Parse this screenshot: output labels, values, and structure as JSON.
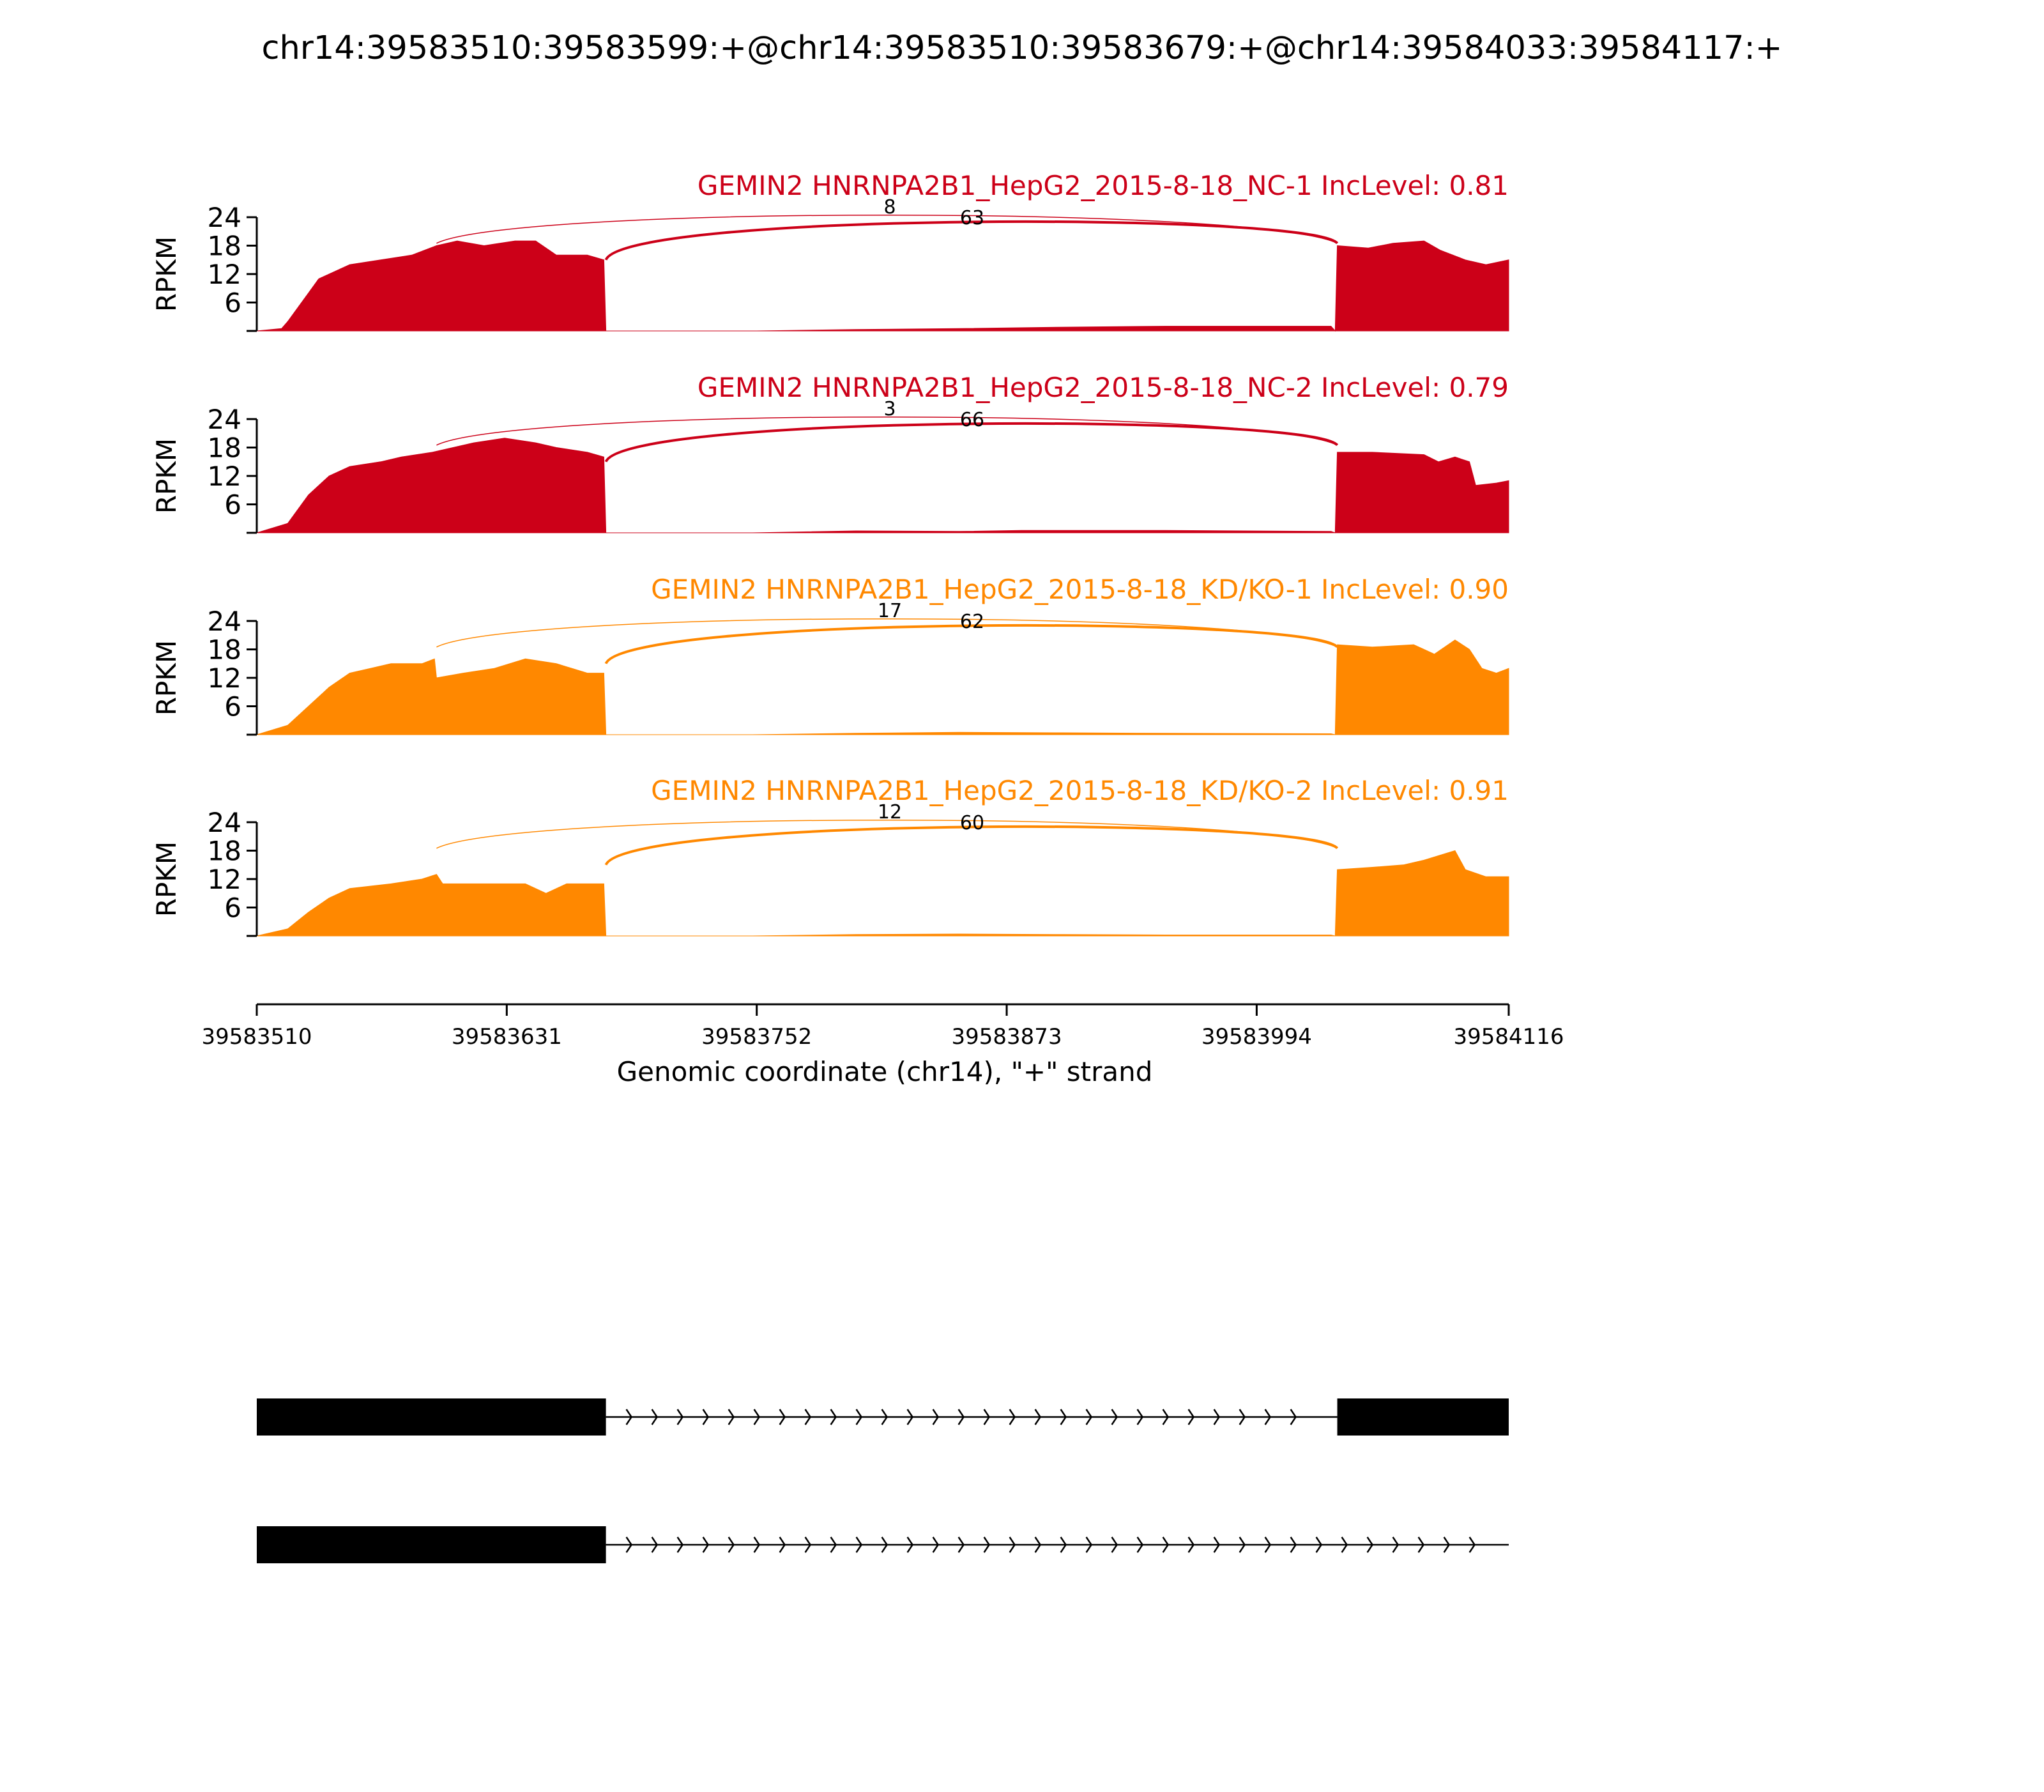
{
  "title": "chr14:39583510:39583599:+@chr14:39583510:39583679:+@chr14:39584033:39584117:+",
  "x_axis": {
    "label": "Genomic coordinate (chr14), \"+\" strand",
    "ticks": [
      "39583510",
      "39583631",
      "39583752",
      "39583873",
      "39583994",
      "39584116"
    ]
  },
  "y_axis": {
    "label": "RPKM",
    "ticks": [
      "24",
      "18",
      "12",
      "6"
    ]
  },
  "colors": {
    "nc": "#cc0018",
    "kd": "#ff8800",
    "structure": "#000000"
  },
  "chart_data": {
    "type": "area",
    "x_range": [
      39583510,
      39584116
    ],
    "y_range": [
      0,
      24
    ],
    "exons": {
      "upstream": [
        39583510,
        39583679
      ],
      "downstream": [
        39584033,
        39584116
      ]
    },
    "tracks": [
      {
        "name": "GEMIN2 HNRNPA2B1_HepG2_2015-8-18_NC-1 IncLevel: 0.81",
        "color_key": "nc",
        "coverage": [
          [
            39583510,
            0
          ],
          [
            39583522,
            0.5
          ],
          [
            39583525,
            2
          ],
          [
            39583535,
            8
          ],
          [
            39583540,
            11
          ],
          [
            39583550,
            13
          ],
          [
            39583555,
            14
          ],
          [
            39583570,
            15
          ],
          [
            39583585,
            16
          ],
          [
            39583597,
            18
          ],
          [
            39583607,
            19
          ],
          [
            39583620,
            18
          ],
          [
            39583635,
            19
          ],
          [
            39583645,
            19
          ],
          [
            39583655,
            16
          ],
          [
            39583670,
            16
          ],
          [
            39583678,
            15
          ],
          [
            39583679,
            0
          ],
          [
            39583752,
            0
          ],
          [
            39583800,
            0.3
          ],
          [
            39583850,
            0.5
          ],
          [
            39583900,
            0.8
          ],
          [
            39583950,
            1
          ],
          [
            39584030,
            1
          ],
          [
            39584032,
            0
          ],
          [
            39584033,
            18
          ],
          [
            39584048,
            17.5
          ],
          [
            39584060,
            18.5
          ],
          [
            39584075,
            19
          ],
          [
            39584083,
            17
          ],
          [
            39584095,
            15
          ],
          [
            39584105,
            14
          ],
          [
            39584116,
            15
          ]
        ],
        "junctions": [
          {
            "label": "8",
            "from": 39583597,
            "to": 39584033
          },
          {
            "label": "63",
            "from": 39583679,
            "to": 39584033
          }
        ]
      },
      {
        "name": "GEMIN2 HNRNPA2B1_HepG2_2015-8-18_NC-2 IncLevel: 0.79",
        "color_key": "nc",
        "coverage": [
          [
            39583510,
            0
          ],
          [
            39583525,
            2
          ],
          [
            39583535,
            8
          ],
          [
            39583545,
            12
          ],
          [
            39583555,
            14
          ],
          [
            39583570,
            15
          ],
          [
            39583580,
            16
          ],
          [
            39583595,
            17
          ],
          [
            39583605,
            18
          ],
          [
            39583615,
            19
          ],
          [
            39583630,
            20
          ],
          [
            39583645,
            19
          ],
          [
            39583655,
            18
          ],
          [
            39583670,
            17
          ],
          [
            39583678,
            16
          ],
          [
            39583679,
            0
          ],
          [
            39583750,
            0
          ],
          [
            39583800,
            0.4
          ],
          [
            39583850,
            0.3
          ],
          [
            39583880,
            0.5
          ],
          [
            39583950,
            0.5
          ],
          [
            39584030,
            0.3
          ],
          [
            39584032,
            0
          ],
          [
            39584033,
            17
          ],
          [
            39584050,
            17
          ],
          [
            39584075,
            16.5
          ],
          [
            39584082,
            15
          ],
          [
            39584090,
            16
          ],
          [
            39584097,
            15
          ],
          [
            39584100,
            10
          ],
          [
            39584110,
            10.5
          ],
          [
            39584116,
            11
          ]
        ],
        "junctions": [
          {
            "label": "3",
            "from": 39583597,
            "to": 39584033
          },
          {
            "label": "66",
            "from": 39583679,
            "to": 39584033
          }
        ]
      },
      {
        "name": "GEMIN2 HNRNPA2B1_HepG2_2015-8-18_KD/KO-1 IncLevel: 0.90",
        "color_key": "kd",
        "coverage": [
          [
            39583510,
            0
          ],
          [
            39583525,
            2
          ],
          [
            39583535,
            6
          ],
          [
            39583545,
            10
          ],
          [
            39583555,
            13
          ],
          [
            39583565,
            14
          ],
          [
            39583575,
            15
          ],
          [
            39583590,
            15
          ],
          [
            39583596,
            16
          ],
          [
            39583597,
            12
          ],
          [
            39583610,
            13
          ],
          [
            39583625,
            14
          ],
          [
            39583640,
            16
          ],
          [
            39583655,
            15
          ],
          [
            39583670,
            13
          ],
          [
            39583678,
            13
          ],
          [
            39583679,
            0
          ],
          [
            39583750,
            0
          ],
          [
            39583800,
            0.3
          ],
          [
            39583850,
            0.5
          ],
          [
            39583900,
            0.4
          ],
          [
            39583950,
            0.3
          ],
          [
            39584030,
            0.2
          ],
          [
            39584032,
            0
          ],
          [
            39584033,
            19
          ],
          [
            39584050,
            18.5
          ],
          [
            39584070,
            19
          ],
          [
            39584080,
            17
          ],
          [
            39584090,
            20
          ],
          [
            39584097,
            18
          ],
          [
            39584103,
            14
          ],
          [
            39584110,
            13
          ],
          [
            39584116,
            14
          ]
        ],
        "junctions": [
          {
            "label": "17",
            "from": 39583597,
            "to": 39584033
          },
          {
            "label": "62",
            "from": 39583679,
            "to": 39584033
          }
        ]
      },
      {
        "name": "GEMIN2 HNRNPA2B1_HepG2_2015-8-18_KD/KO-2 IncLevel: 0.91",
        "color_key": "kd",
        "coverage": [
          [
            39583510,
            0
          ],
          [
            39583525,
            1.5
          ],
          [
            39583535,
            5
          ],
          [
            39583545,
            8
          ],
          [
            39583555,
            10
          ],
          [
            39583575,
            11
          ],
          [
            39583590,
            12
          ],
          [
            39583597,
            13
          ],
          [
            39583600,
            11
          ],
          [
            39583620,
            11
          ],
          [
            39583640,
            11
          ],
          [
            39583650,
            9
          ],
          [
            39583660,
            11
          ],
          [
            39583678,
            11
          ],
          [
            39583679,
            0
          ],
          [
            39583750,
            0
          ],
          [
            39583800,
            0.3
          ],
          [
            39583850,
            0.4
          ],
          [
            39583900,
            0.3
          ],
          [
            39583950,
            0.2
          ],
          [
            39584030,
            0.2
          ],
          [
            39584032,
            0
          ],
          [
            39584033,
            14
          ],
          [
            39584050,
            14.5
          ],
          [
            39584065,
            15
          ],
          [
            39584075,
            16
          ],
          [
            39584090,
            18
          ],
          [
            39584095,
            14
          ],
          [
            39584105,
            12.5
          ],
          [
            39584116,
            12.5
          ]
        ],
        "junctions": [
          {
            "label": "12",
            "from": 39583597,
            "to": 39584033
          },
          {
            "label": "60",
            "from": 39583679,
            "to": 39584033
          }
        ]
      }
    ],
    "isoforms": [
      {
        "exons": [
          [
            39583510,
            39583679
          ],
          [
            39584033,
            39584116
          ]
        ],
        "intron": [
          39583679,
          39584033
        ]
      },
      {
        "exons": [
          [
            39583510,
            39583679
          ]
        ],
        "intron": [
          39583679,
          39584116
        ]
      }
    ]
  }
}
